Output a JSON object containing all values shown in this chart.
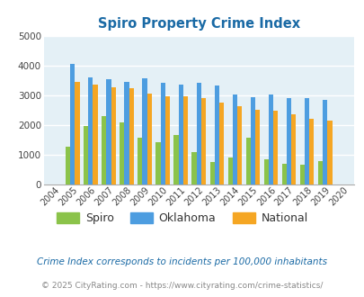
{
  "title": "Spiro Property Crime Index",
  "years": [
    2004,
    2005,
    2006,
    2007,
    2008,
    2009,
    2010,
    2011,
    2012,
    2013,
    2014,
    2015,
    2016,
    2017,
    2018,
    2019,
    2020
  ],
  "spiro": [
    0,
    1250,
    1950,
    2300,
    2080,
    1570,
    1400,
    1650,
    1080,
    750,
    900,
    1570,
    850,
    670,
    650,
    780,
    0
  ],
  "oklahoma": [
    0,
    4040,
    3600,
    3540,
    3440,
    3560,
    3400,
    3360,
    3420,
    3310,
    3010,
    2930,
    3010,
    2890,
    2890,
    2840,
    0
  ],
  "national": [
    0,
    3450,
    3360,
    3260,
    3230,
    3060,
    2960,
    2960,
    2900,
    2750,
    2620,
    2500,
    2470,
    2360,
    2200,
    2130,
    0
  ],
  "spiro_color": "#8bc34a",
  "oklahoma_color": "#4d9de0",
  "national_color": "#f5a623",
  "bg_color": "#e4f0f6",
  "title_color": "#1a6aa5",
  "ylim": [
    0,
    5000
  ],
  "yticks": [
    0,
    1000,
    2000,
    3000,
    4000,
    5000
  ],
  "footnote1": "Crime Index corresponds to incidents per 100,000 inhabitants",
  "footnote2": "© 2025 CityRating.com - https://www.cityrating.com/crime-statistics/",
  "legend_labels": [
    "Spiro",
    "Oklahoma",
    "National"
  ]
}
